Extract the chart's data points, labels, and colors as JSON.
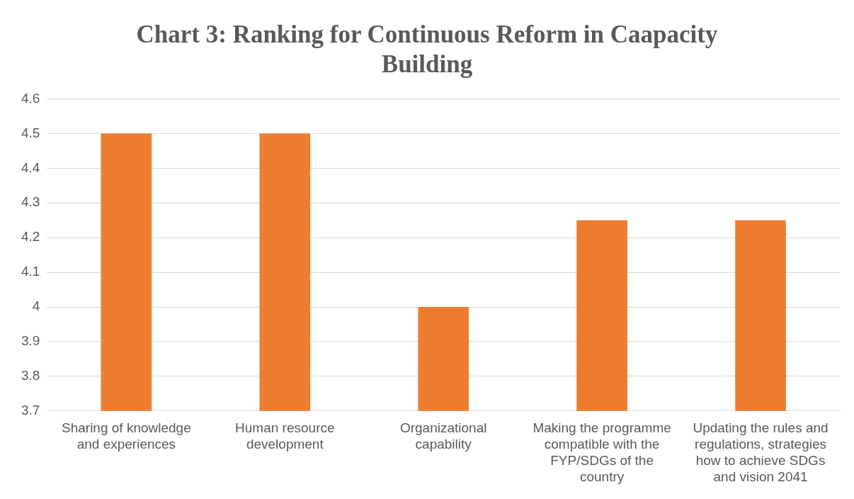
{
  "chart_data": {
    "type": "bar",
    "title": "Chart 3: Ranking for Continuous Reform in Caapacity Building",
    "categories": [
      "Sharing of knowledge and experiences",
      "Human resource development",
      "Organizational capability",
      "Making the programme compatible with the FYP/SDGs of the country",
      "Updating the rules and regulations, strategies how to achieve SDGs and vision 2041"
    ],
    "values": [
      4.5,
      4.5,
      4,
      4.25,
      4.25
    ],
    "color": "#ed7d31",
    "ylim": [
      3.7,
      4.6
    ],
    "yticks": [
      3.7,
      3.8,
      3.9,
      4,
      4.1,
      4.2,
      4.3,
      4.4,
      4.5,
      4.6
    ],
    "grid": "y",
    "legend": false
  }
}
